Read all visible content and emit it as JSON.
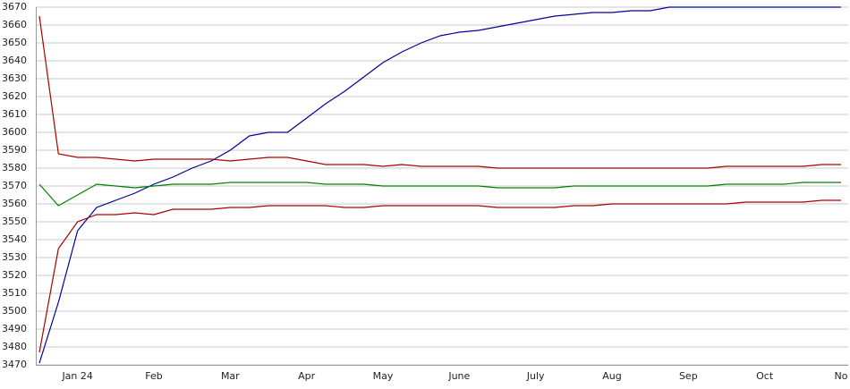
{
  "chart_data": {
    "type": "line",
    "categories": [
      null,
      null,
      "Jan 24",
      null,
      null,
      null,
      "Feb",
      null,
      null,
      null,
      "Mar",
      null,
      null,
      null,
      "Apr",
      null,
      null,
      null,
      "May",
      null,
      null,
      null,
      "June",
      null,
      null,
      null,
      "July",
      null,
      null,
      null,
      "Aug",
      null,
      null,
      null,
      "Sep",
      null,
      null,
      null,
      "Oct",
      null,
      null,
      null,
      "No"
    ],
    "ylim": [
      3470,
      3670
    ],
    "yticks": [
      3470,
      3480,
      3490,
      3500,
      3510,
      3520,
      3530,
      3540,
      3550,
      3560,
      3570,
      3580,
      3590,
      3600,
      3610,
      3620,
      3630,
      3640,
      3650,
      3660,
      3670
    ],
    "grid": true,
    "series": [
      {
        "color": "#00009c",
        "values": [
          3471,
          3505,
          3545,
          3558,
          3562,
          3566,
          3571,
          3575,
          3580,
          3584,
          3590,
          3598,
          3600,
          3600,
          3608,
          3616,
          3623,
          3631,
          3639,
          3645,
          3650,
          3654,
          3656,
          3657,
          3659,
          3661,
          3663,
          3665,
          3666,
          3667,
          3667,
          3668,
          3668,
          3670,
          3670,
          3670,
          3670,
          3670,
          3670,
          3670,
          3670,
          3670,
          3670
        ]
      },
      {
        "color": "#aa0000",
        "values": [
          3665,
          3588,
          3586,
          3586,
          3585,
          3584,
          3585,
          3585,
          3585,
          3585,
          3584,
          3585,
          3586,
          3586,
          3584,
          3582,
          3582,
          3582,
          3581,
          3582,
          3581,
          3581,
          3581,
          3581,
          3580,
          3580,
          3580,
          3580,
          3580,
          3580,
          3580,
          3580,
          3580,
          3580,
          3580,
          3580,
          3581,
          3581,
          3581,
          3581,
          3581,
          3582,
          3582
        ]
      },
      {
        "color": "#008000",
        "values": [
          3571,
          3559,
          3565,
          3571,
          3570,
          3569,
          3570,
          3571,
          3571,
          3571,
          3572,
          3572,
          3572,
          3572,
          3572,
          3571,
          3571,
          3571,
          3570,
          3570,
          3570,
          3570,
          3570,
          3570,
          3569,
          3569,
          3569,
          3569,
          3570,
          3570,
          3570,
          3570,
          3570,
          3570,
          3570,
          3570,
          3571,
          3571,
          3571,
          3571,
          3572,
          3572,
          3572
        ]
      },
      {
        "color": "#aa0000",
        "values": [
          3477,
          3535,
          3550,
          3554,
          3554,
          3555,
          3554,
          3557,
          3557,
          3557,
          3558,
          3558,
          3559,
          3559,
          3559,
          3559,
          3558,
          3558,
          3559,
          3559,
          3559,
          3559,
          3559,
          3559,
          3558,
          3558,
          3558,
          3558,
          3559,
          3559,
          3560,
          3560,
          3560,
          3560,
          3560,
          3560,
          3560,
          3561,
          3561,
          3561,
          3561,
          3562,
          3562
        ]
      }
    ]
  }
}
